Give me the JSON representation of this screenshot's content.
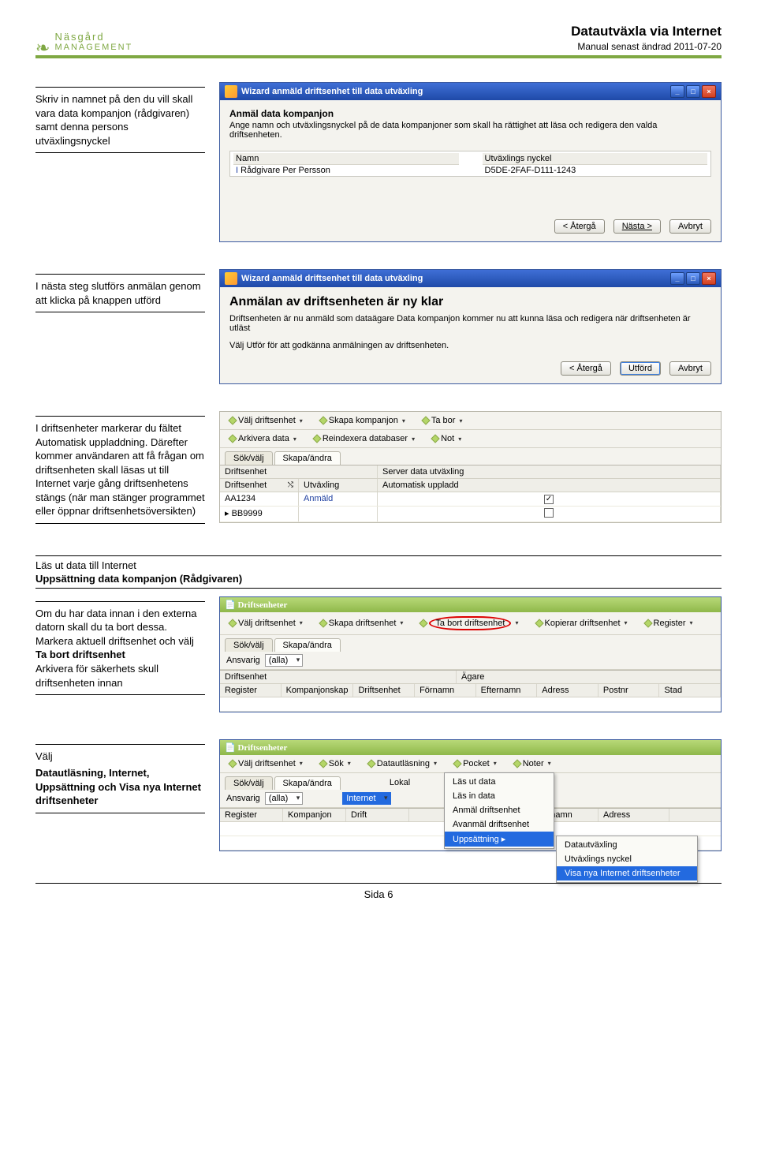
{
  "header": {
    "logo_line1": "Näsgård",
    "logo_line2": "MANAGEMENT",
    "title": "Datautväxla via Internet",
    "subtitle": "Manual senast ändrad 2011-07-20",
    "accent_color": "#7fa843"
  },
  "s1": {
    "left": "Skriv in namnet på den du vill skall vara data kompanjon (rådgivaren) samt denna persons utväxlingsnyckel",
    "win_title": "Wizard anmäld driftsenhet till data utväxling",
    "heading": "Anmäl data kompanjon",
    "desc": "Ange namn och utväxlingsnyckel på de data kompanjoner som skall ha rättighet att läsa och redigera den valda driftsenheten.",
    "col_name": "Namn",
    "col_key": "Utväxlings nyckel",
    "val_name": "Rådgivare Per Persson",
    "val_key": "D5DE-2FAF-D111-1243",
    "btn_back": "< Återgå",
    "btn_next": "Nästa >",
    "btn_cancel": "Avbryt"
  },
  "s2": {
    "left": "I nästa steg slutförs anmälan genom att klicka på knappen utförd",
    "win_title": "Wizard anmäld driftsenhet till data utväxling",
    "heading": "Anmälan av driftsenheten är ny klar",
    "desc1": "Driftsenheten är nu anmäld som dataägare Data kompanjon kommer nu att kunna läsa och redigera när driftsenheten är utläst",
    "desc2": "Välj Utför för att godkänna anmälningen av driftsenheten.",
    "btn_back": "< Återgå",
    "btn_done": "Utförd",
    "btn_cancel": "Avbryt"
  },
  "s3": {
    "left": "I driftsenheter markerar du fältet Automatisk uppladdning. Därefter kommer användaren att få frågan om driftsenheten skall läsas ut till Internet varje gång driftsenhetens stängs (när man stänger programmet eller öppnar driftsenhetsöversikten)",
    "tb": [
      "Välj driftsenhet",
      "Skapa kompanjon",
      "Ta bor"
    ],
    "tb2": [
      "Arkivera data",
      "Reindexera databaser",
      "Not"
    ],
    "tabs": [
      "Sök/välj",
      "Skapa/ändra"
    ],
    "gh1": [
      "Driftsenhet",
      "Server data utväxling"
    ],
    "gh2": [
      "Driftsenhet",
      "Utväxling",
      "Automatisk uppladd"
    ],
    "row1": [
      "AA1234",
      "Anmäld",
      "✓"
    ],
    "row2": [
      "BB9999",
      "",
      ""
    ]
  },
  "s4": {
    "title1": "Läs ut data till Internet",
    "title2": "Uppsättning data kompanjon (Rådgivaren)",
    "left_html": "Om du har data innan i den externa datorn skall du ta bort dessa. Markera aktuell driftsenhet och välj <b>Ta bort driftsenhet</b><br>Arkivera för säkerhets skull driftsenheten innan",
    "win_title": "Driftsenheter",
    "tb": [
      "Välj driftsenhet",
      "Skapa driftsenhet",
      "Ta bort driftsenhet",
      "Kopierar driftsenhet",
      "Register"
    ],
    "tabs": [
      "Sök/välj",
      "Skapa/ändra"
    ],
    "ansvarig_label": "Ansvarig",
    "ansvarig_val": "(alla)",
    "gh1": [
      "Driftsenhet",
      "",
      "Ägare"
    ],
    "gh2": [
      "Register",
      "Kompanjonskap",
      "Driftsenhet",
      "Förnamn",
      "Efternamn",
      "Adress",
      "Postnr",
      "Stad"
    ]
  },
  "s5": {
    "left_pre": "Välj",
    "left_bold": "Datautläsning, Internet, Uppsättning och Visa nya Internet driftsenheter",
    "win_title": "Driftsenheter",
    "tb": [
      "Välj driftsenhet",
      "Sök",
      "Datautläsning",
      "Pocket",
      "Noter"
    ],
    "tabs": [
      "Sök/välj",
      "Skapa/ändra"
    ],
    "ansvarig_label": "Ansvarig",
    "ansvarig_val": "(alla)",
    "sub_lokal": "Lokal",
    "sub_internet": "Internet",
    "gh": [
      "Register",
      "Kompanjon",
      "Drift",
      "Efternamn",
      "Adress"
    ],
    "menu1": [
      "Läs ut data",
      "Läs in data",
      "Anmäl driftsenhet",
      "Avanmäl driftsenhet",
      "Uppsättning"
    ],
    "menu2": [
      "Datautväxling",
      "Utväxlings nyckel",
      "Visa nya Internet driftsenheter"
    ]
  },
  "footer": "Sida 6"
}
